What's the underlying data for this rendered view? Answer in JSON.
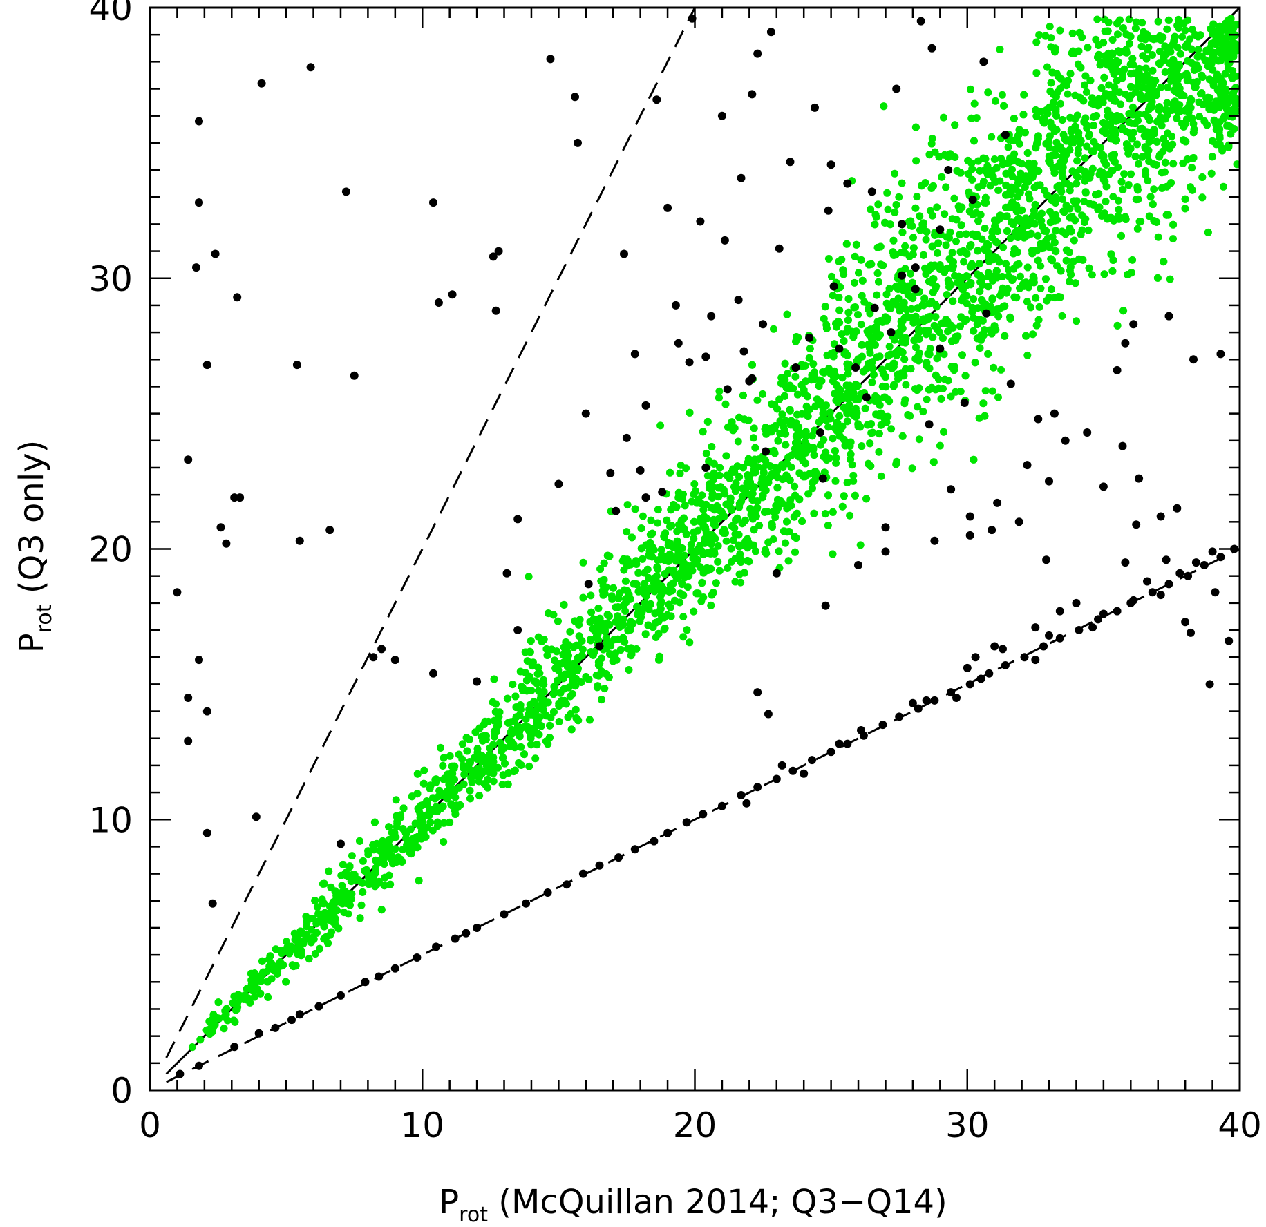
{
  "chart_data": {
    "type": "scatter",
    "title": "",
    "xlabel": {
      "main": "P",
      "sub": "rot",
      "rest": " (McQuillan 2014; Q3−Q14)"
    },
    "ylabel": {
      "main": "P",
      "sub": "rot",
      "rest": " (Q3 only)"
    },
    "xlim": [
      0,
      40
    ],
    "ylim": [
      0,
      40
    ],
    "x_ticks": [
      0,
      10,
      20,
      30,
      40
    ],
    "y_ticks": [
      0,
      10,
      20,
      30,
      40
    ],
    "x_tick_labels": [
      "0",
      "10",
      "20",
      "30",
      "40"
    ],
    "y_tick_labels": [
      "0",
      "10",
      "20",
      "30",
      "40"
    ],
    "minor_tick_step": 1,
    "grid": false,
    "reference_lines": [
      {
        "name": "one-to-one",
        "slope": 1,
        "style": "solid"
      },
      {
        "name": "double-period",
        "slope": 2,
        "style": "dashed"
      },
      {
        "name": "half-period",
        "slope": 0.5,
        "style": "dashed"
      }
    ],
    "colors": {
      "outlier_points": "#000000",
      "agreeing_points": "#00e600"
    },
    "series": [
      {
        "color": "#000000",
        "x": [
          4.1,
          5.9,
          1.8,
          1.8,
          1.7,
          2.4,
          3.2,
          2.1,
          5.4,
          7.5,
          7.2,
          1.4,
          3.1,
          3.3,
          2.8,
          5.5,
          1.0,
          1.8,
          1.4,
          2.1,
          2.1,
          1.4,
          2.3,
          3.9,
          7.0,
          8.5,
          10.4,
          10.6,
          11.1,
          12.6,
          12.8,
          12.7,
          13.5,
          13.1,
          14.7,
          15.6,
          15.7,
          16.0,
          16.1,
          16.5,
          17.4,
          18.2,
          18.6,
          19.9,
          21.0,
          20.2,
          22.1,
          22.3,
          22.8,
          24.4,
          25.0,
          26.5,
          27.4,
          28.3,
          28.7,
          30.6,
          29.3,
          31.4,
          29.0,
          30.2,
          27.6,
          24.9,
          23.1,
          21.6,
          19.4,
          20.4,
          22.5,
          24.2,
          25.9,
          27.2,
          28.1,
          29.0,
          30.7,
          31.6,
          32.6,
          33.2,
          34.4,
          35.5,
          36.1,
          37.4,
          38.3,
          39.3,
          35.7,
          33.0,
          31.9,
          30.1,
          28.8,
          27.0,
          26.0,
          23.0,
          24.8,
          33.4,
          38.0,
          39.6,
          38.9,
          39.1,
          37.7,
          36.2,
          35.8,
          34.0,
          32.5,
          31.0,
          30.3,
          28.5,
          36.3,
          37.1,
          32.9,
          31.1,
          29.4,
          24.7,
          22.6,
          20.4,
          18.2,
          17.5,
          15.0,
          13.5,
          8.2,
          9.0,
          10.4,
          12.0,
          22.3,
          22.7,
          21.2,
          18.8,
          17.1,
          2.6,
          6.6,
          21.8,
          20.6,
          25.1,
          26.6,
          28.1,
          27.6,
          25.6,
          23.5,
          21.7,
          19.0,
          18.0,
          16.9,
          17.8,
          19.8,
          22.0,
          24.6,
          27.0,
          28.6,
          30.9,
          25.3,
          26.3,
          29.9,
          33.6,
          35.8,
          37.3,
          38.2,
          35.0,
          32.2,
          30.1,
          21.1,
          19.3,
          23.7,
          22.1
        ],
        "y": [
          37.2,
          37.8,
          35.8,
          32.8,
          30.4,
          30.9,
          29.3,
          26.8,
          26.8,
          26.4,
          33.2,
          23.3,
          21.9,
          21.9,
          20.2,
          20.3,
          18.4,
          15.9,
          14.5,
          14.0,
          9.5,
          12.9,
          6.9,
          10.1,
          9.1,
          16.3,
          32.8,
          29.1,
          29.4,
          30.8,
          31.0,
          28.8,
          21.1,
          19.1,
          38.1,
          36.7,
          35.0,
          25.0,
          18.7,
          16.4,
          30.9,
          25.3,
          36.6,
          39.6,
          36.0,
          32.1,
          36.8,
          38.3,
          39.1,
          36.3,
          34.2,
          33.2,
          37.0,
          39.5,
          38.5,
          38.0,
          34.0,
          35.3,
          31.8,
          32.9,
          30.1,
          32.5,
          31.1,
          29.2,
          27.6,
          27.1,
          28.3,
          27.8,
          26.7,
          28.0,
          29.6,
          27.4,
          28.7,
          26.1,
          24.8,
          25.0,
          24.3,
          26.6,
          28.3,
          28.6,
          27.0,
          27.2,
          23.8,
          22.5,
          21.0,
          20.5,
          20.3,
          19.9,
          19.4,
          19.1,
          17.9,
          17.7,
          17.3,
          16.6,
          15.0,
          18.4,
          21.5,
          20.9,
          19.5,
          18.0,
          17.1,
          16.4,
          16.0,
          14.4,
          22.6,
          21.2,
          19.6,
          21.7,
          22.2,
          22.6,
          23.6,
          23.0,
          21.9,
          24.1,
          22.4,
          17.0,
          16.0,
          15.9,
          15.4,
          15.1,
          14.7,
          13.9,
          25.9,
          22.1,
          21.4,
          20.8,
          20.7,
          27.3,
          28.6,
          29.7,
          28.9,
          30.4,
          32.0,
          33.5,
          34.3,
          33.7,
          32.6,
          22.9,
          22.8,
          27.2,
          26.9,
          26.2,
          24.3,
          20.8,
          24.6,
          20.7,
          27.4,
          25.6,
          25.4,
          24.0,
          27.6,
          19.6,
          16.9,
          22.3,
          23.1,
          21.2,
          31.4,
          29.0,
          26.7,
          26.3
        ]
      },
      {
        "color": "#000000",
        "x": [
          1.1,
          1.8,
          3.1,
          4.0,
          4.6,
          5.2,
          5.5,
          6.2,
          7.0,
          7.9,
          8.4,
          9.0,
          9.8,
          10.5,
          11.2,
          11.6,
          12.0,
          13.0,
          13.8,
          14.6,
          15.3,
          15.9,
          16.5,
          17.2,
          17.8,
          18.5,
          19.0,
          19.7,
          20.3,
          21.0,
          21.7,
          22.3,
          23.0,
          23.6,
          24.3,
          25.0,
          25.6,
          26.2,
          26.9,
          27.5,
          28.2,
          28.8,
          29.4,
          30.1,
          30.8,
          31.4,
          32.1,
          32.8,
          33.4,
          34.1,
          34.8,
          35.5,
          36.1,
          36.8,
          37.4,
          38.1,
          38.7,
          39.3,
          39.8,
          23.2,
          26.1,
          29.6,
          31.3,
          34.6,
          36.6,
          38.4,
          21.9,
          25.3,
          28.0,
          30.5,
          33.0,
          37.1,
          39.0,
          24.0,
          30.0,
          32.5,
          35.0,
          36.0,
          37.8
        ],
        "y": [
          0.6,
          0.9,
          1.6,
          2.1,
          2.3,
          2.6,
          2.8,
          3.1,
          3.5,
          4.0,
          4.2,
          4.5,
          4.9,
          5.3,
          5.6,
          5.8,
          6.0,
          6.5,
          6.9,
          7.3,
          7.6,
          8.0,
          8.3,
          8.6,
          8.9,
          9.2,
          9.5,
          9.9,
          10.2,
          10.5,
          10.9,
          11.2,
          11.5,
          11.8,
          12.2,
          12.5,
          12.8,
          13.1,
          13.5,
          13.8,
          14.1,
          14.4,
          14.7,
          15.0,
          15.4,
          15.7,
          16.0,
          16.4,
          16.7,
          17.0,
          17.4,
          17.7,
          18.1,
          18.4,
          18.7,
          19.0,
          19.4,
          19.7,
          20.0,
          12.0,
          13.3,
          14.5,
          16.3,
          17.1,
          18.8,
          19.5,
          10.6,
          12.8,
          14.3,
          15.2,
          16.8,
          18.3,
          19.9,
          11.7,
          15.6,
          15.9,
          17.6,
          18.0,
          19.1
        ]
      }
    ],
    "density_cloud": {
      "color": "#00e600",
      "description_free": true,
      "trend": [
        [
          1.2,
          1.2
        ],
        [
          3,
          3
        ],
        [
          6,
          6
        ],
        [
          10,
          10
        ],
        [
          14,
          14
        ],
        [
          18,
          18.2
        ],
        [
          22,
          22.2
        ],
        [
          26,
          26.4
        ],
        [
          30,
          30.4
        ],
        [
          34,
          34.2
        ],
        [
          38,
          37.5
        ],
        [
          40,
          38.4
        ]
      ],
      "spread_x": [
        [
          1,
          0.15
        ],
        [
          5,
          0.5
        ],
        [
          10,
          0.9
        ],
        [
          15,
          1.4
        ],
        [
          20,
          2.0
        ],
        [
          25,
          2.6
        ],
        [
          30,
          3.2
        ],
        [
          35,
          3.6
        ],
        [
          40,
          3.8
        ]
      ],
      "spread_y": [
        [
          1,
          0.15
        ],
        [
          5,
          0.5
        ],
        [
          10,
          0.9
        ],
        [
          15,
          1.4
        ],
        [
          20,
          2.0
        ],
        [
          25,
          2.7
        ],
        [
          30,
          3.4
        ],
        [
          35,
          3.4
        ],
        [
          40,
          2.0
        ]
      ],
      "count": 5200
    }
  }
}
